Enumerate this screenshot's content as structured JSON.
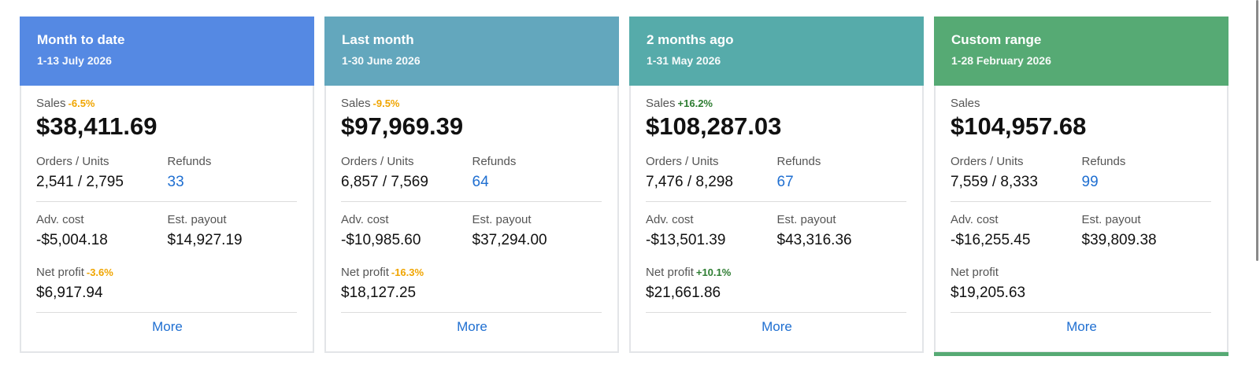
{
  "cards": [
    {
      "title": "Month to date",
      "range": "1-13 July 2026",
      "color": "#5589e3",
      "sales_label": "Sales",
      "sales_change": "-6.5%",
      "sales_change_dir": "neg",
      "sales": "$38,411.69",
      "orders_label": "Orders / Units",
      "orders": "2,541 / 2,795",
      "refunds_label": "Refunds",
      "refunds": "33",
      "adv_label": "Adv. cost",
      "adv": "-$5,004.18",
      "payout_label": "Est. payout",
      "payout": "$14,927.19",
      "net_label": "Net profit",
      "net_change": "-3.6%",
      "net_change_dir": "neg",
      "net": "$6,917.94",
      "more_label": "More",
      "selected": false
    },
    {
      "title": "Last month",
      "range": "1-30 June 2026",
      "color": "#63a7bd",
      "sales_label": "Sales",
      "sales_change": "-9.5%",
      "sales_change_dir": "neg",
      "sales": "$97,969.39",
      "orders_label": "Orders / Units",
      "orders": "6,857 / 7,569",
      "refunds_label": "Refunds",
      "refunds": "64",
      "adv_label": "Adv. cost",
      "adv": "-$10,985.60",
      "payout_label": "Est. payout",
      "payout": "$37,294.00",
      "net_label": "Net profit",
      "net_change": "-16.3%",
      "net_change_dir": "neg",
      "net": "$18,127.25",
      "more_label": "More",
      "selected": false
    },
    {
      "title": "2 months ago",
      "range": "1-31 May 2026",
      "color": "#56abaa",
      "sales_label": "Sales",
      "sales_change": "+16.2%",
      "sales_change_dir": "pos",
      "sales": "$108,287.03",
      "orders_label": "Orders / Units",
      "orders": "7,476 / 8,298",
      "refunds_label": "Refunds",
      "refunds": "67",
      "adv_label": "Adv. cost",
      "adv": "-$13,501.39",
      "payout_label": "Est. payout",
      "payout": "$43,316.36",
      "net_label": "Net profit",
      "net_change": "+10.1%",
      "net_change_dir": "pos",
      "net": "$21,661.86",
      "more_label": "More",
      "selected": false
    },
    {
      "title": "Custom range",
      "range": "1-28 February 2026",
      "color": "#56aa74",
      "sales_label": "Sales",
      "sales_change": "",
      "sales_change_dir": "",
      "sales": "$104,957.68",
      "orders_label": "Orders / Units",
      "orders": "7,559 / 8,333",
      "refunds_label": "Refunds",
      "refunds": "99",
      "adv_label": "Adv. cost",
      "adv": "-$16,255.45",
      "payout_label": "Est. payout",
      "payout": "$39,809.38",
      "net_label": "Net profit",
      "net_change": "",
      "net_change_dir": "",
      "net": "$19,205.63",
      "more_label": "More",
      "selected": true
    }
  ]
}
